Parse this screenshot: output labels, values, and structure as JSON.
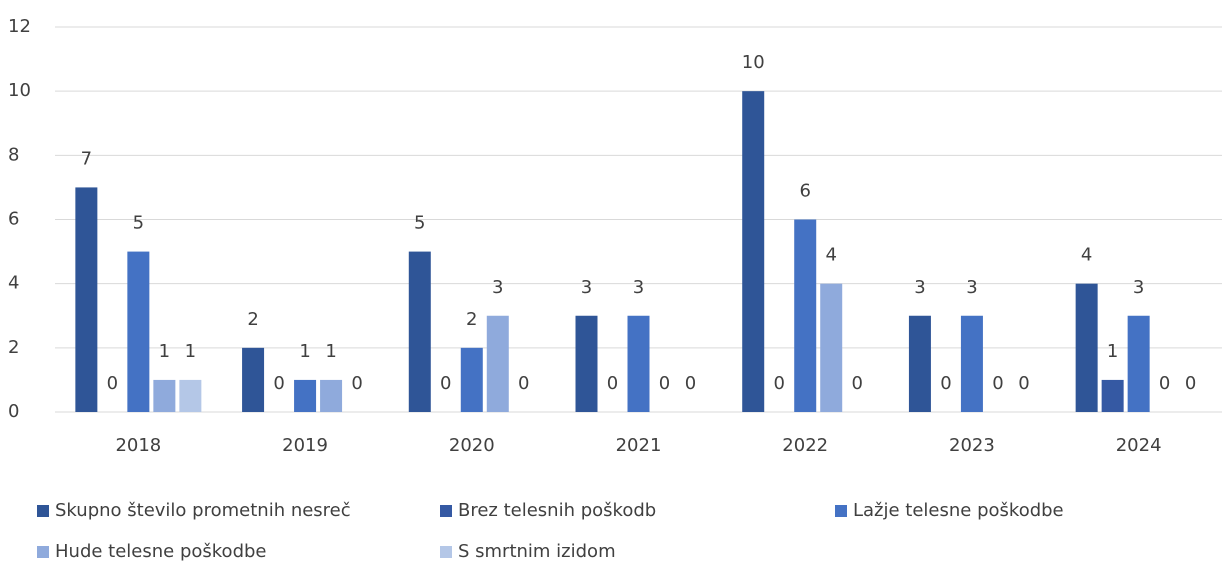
{
  "chart_data": {
    "type": "bar",
    "categories": [
      "2018",
      "2019",
      "2020",
      "2021",
      "2022",
      "2023",
      "2024"
    ],
    "series": [
      {
        "name": "Skupno število prometnih nesreč",
        "color": "#2f5597",
        "values": [
          7,
          2,
          5,
          3,
          10,
          3,
          4
        ]
      },
      {
        "name": "Brez telesnih poškodb",
        "color": "#3559a3",
        "values": [
          0,
          0,
          0,
          0,
          0,
          0,
          1
        ]
      },
      {
        "name": "Lažje telesne poškodbe",
        "color": "#4472c4",
        "values": [
          5,
          1,
          2,
          3,
          6,
          3,
          3
        ]
      },
      {
        "name": "Hude telesne poškodbe",
        "color": "#8faadc",
        "values": [
          1,
          1,
          3,
          0,
          4,
          0,
          0
        ]
      },
      {
        "name": "S smrtnim izidom",
        "color": "#b4c7e7",
        "values": [
          1,
          0,
          0,
          0,
          0,
          0,
          0
        ]
      }
    ],
    "ylim": [
      0,
      12
    ],
    "yticks": [
      0,
      2,
      4,
      6,
      8,
      10,
      12
    ],
    "grid": true,
    "legend": "bottom"
  }
}
